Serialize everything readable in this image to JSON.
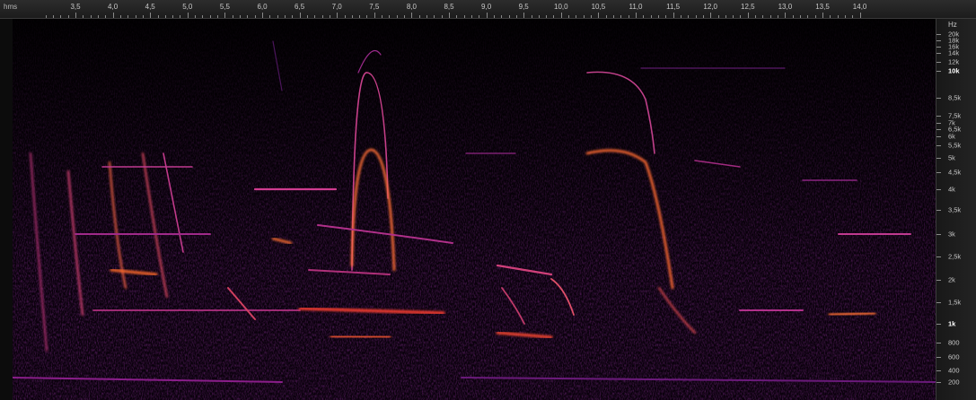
{
  "time_ruler": {
    "unit_label": "hms",
    "ticks": [
      "3,5",
      "4,0",
      "4,5",
      "5,0",
      "5,5",
      "6,0",
      "6,5",
      "7,0",
      "7,5",
      "8,0",
      "8,5",
      "9,0",
      "9,5",
      "10,0",
      "10,5",
      "11,0",
      "11,5",
      "12,0",
      "12,5",
      "13,0",
      "13,5",
      "14,0"
    ]
  },
  "frequency_axis": {
    "unit_label": "Hz",
    "labels": [
      "20k",
      "18k",
      "16k",
      "14k",
      "12k",
      "10k",
      "8,5k",
      "7,5k",
      "7k",
      "6,5k",
      "6k",
      "5,5k",
      "5k",
      "4,5k",
      "4k",
      "3,5k",
      "3k",
      "2,5k",
      "2k",
      "1,5k",
      "1k",
      "800",
      "600",
      "400",
      "200"
    ],
    "major_labels": [
      "10k",
      "1k"
    ]
  },
  "spectrogram": {
    "colormap": [
      "#000000",
      "#3a0a4a",
      "#8a1e9a",
      "#d03070",
      "#ff6a1a"
    ]
  }
}
